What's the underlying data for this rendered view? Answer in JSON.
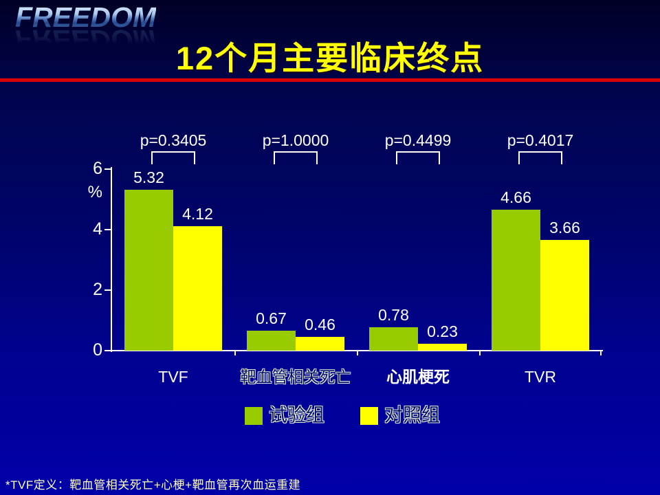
{
  "slide": {
    "logo_text": "FREEDOM",
    "title": "12个月主要临床终点",
    "footnote": "*TVF定义：靶血管相关死亡+心梗+靶血管再次血运重建"
  },
  "chart_data": {
    "type": "bar",
    "title": "12个月主要临床终点",
    "xlabel": "",
    "ylabel": "%",
    "ylim": [
      0,
      6
    ],
    "yticks": [
      6,
      4,
      2,
      0
    ],
    "grid": false,
    "legend_position": "bottom-center",
    "categories": [
      "TVF",
      "靶血管相关死亡",
      "心肌梗死",
      "TVR"
    ],
    "series": [
      {
        "name": "试验组",
        "color": "#99CC00",
        "values": [
          5.32,
          0.67,
          0.78,
          4.66
        ]
      },
      {
        "name": "对照组",
        "color": "#FFFF00",
        "values": [
          4.12,
          0.46,
          0.23,
          3.66
        ]
      }
    ],
    "p_values": [
      "p=0.3405",
      "p=1.0000",
      "p=0.4499",
      "p=0.4017"
    ]
  },
  "colors": {
    "background_top": "#000026",
    "background_bottom": "#0000A9",
    "divider_red": "#D90000",
    "title_yellow": "#FFFF00",
    "axis_white": "#FFFFFF",
    "experimental_green": "#99CC00",
    "control_yellow": "#FFFF00",
    "footnote_yellow": "#FFFFC4"
  }
}
